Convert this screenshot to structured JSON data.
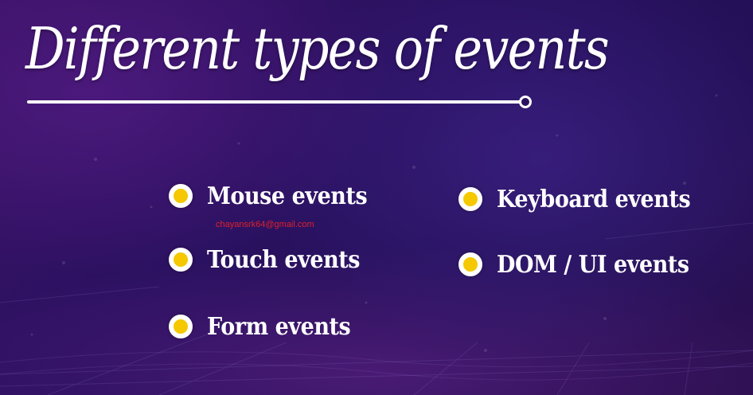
{
  "title": "Different types of events",
  "left_items": [
    {
      "label": "Mouse events"
    },
    {
      "label": "Touch events"
    },
    {
      "label": "Form events"
    }
  ],
  "right_items": [
    {
      "label": "Keyboard events"
    },
    {
      "label": "DOM / UI events"
    }
  ],
  "watermark": "chayansrk64@gmail.com",
  "colors": {
    "bullet_fill": "#f5c800",
    "bullet_ring": "#ffffff",
    "text": "#ffffff",
    "watermark": "#e0202a",
    "background": "#2a1160"
  },
  "icons": {
    "bullet": "bullet-dot-icon",
    "underline_end": "circle-endpoint-icon"
  }
}
